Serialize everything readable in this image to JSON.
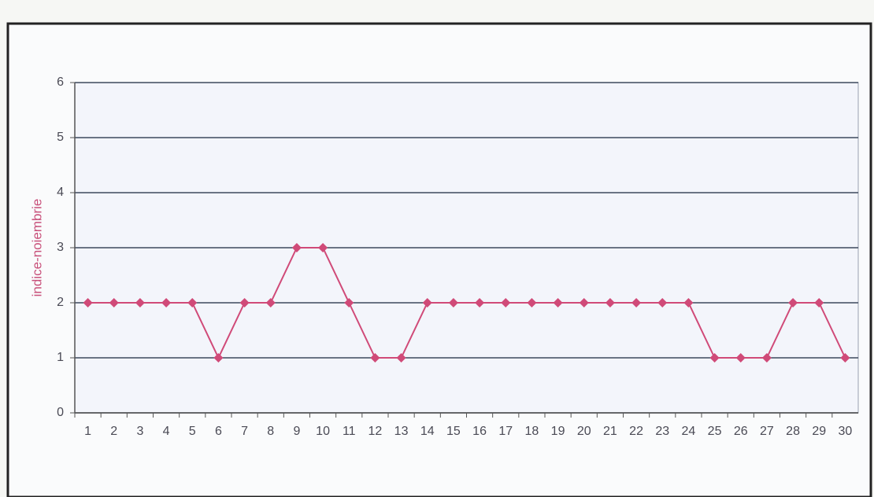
{
  "chart_data": {
    "type": "line",
    "y_label": "indice-noiembrie",
    "categories": [
      "1",
      "2",
      "3",
      "4",
      "5",
      "6",
      "7",
      "8",
      "9",
      "10",
      "11",
      "12",
      "13",
      "14",
      "15",
      "16",
      "17",
      "18",
      "19",
      "20",
      "21",
      "22",
      "23",
      "24",
      "25",
      "26",
      "27",
      "28",
      "29",
      "30"
    ],
    "series": [
      {
        "name": "indice-noiembrie",
        "color": "#d04a78",
        "values": [
          2,
          2,
          2,
          2,
          2,
          1,
          2,
          2,
          3,
          3,
          2,
          1,
          1,
          2,
          2,
          2,
          2,
          2,
          2,
          2,
          2,
          2,
          2,
          2,
          1,
          1,
          1,
          2,
          2,
          1
        ]
      }
    ],
    "ylim": [
      0,
      6
    ],
    "yticks": [
      0,
      1,
      2,
      3,
      4,
      5,
      6
    ],
    "grid": true
  }
}
